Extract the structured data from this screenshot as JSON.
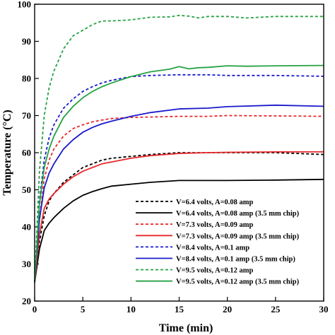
{
  "chart_data": {
    "type": "line",
    "xlabel": "Time (min)",
    "ylabel": "Temperature (°C)",
    "xlim": [
      0,
      30
    ],
    "ylim": [
      20,
      100
    ],
    "xticks": [
      0,
      5,
      10,
      15,
      20,
      25,
      30
    ],
    "yticks": [
      20,
      30,
      40,
      50,
      60,
      70,
      80,
      90,
      100
    ],
    "grid": false,
    "legend_position": "bottom-right",
    "series": [
      {
        "name": "V=6.4 volts, A=0.08 amp",
        "color": "#000000",
        "dash": "dashed",
        "x": [
          0,
          0.5,
          1,
          1.5,
          2,
          3,
          4,
          5,
          6,
          7,
          8,
          10,
          12,
          15,
          18,
          20,
          25,
          30
        ],
        "y": [
          25,
          36,
          43,
          47,
          49,
          52,
          54,
          56,
          57,
          58,
          58.5,
          59,
          59.5,
          60,
          60,
          60,
          60,
          59.5
        ]
      },
      {
        "name": "V=6.4 volts, A=0.08 amp (3.5 mm chip)",
        "color": "#000000",
        "dash": "solid",
        "x": [
          0,
          0.5,
          1,
          1.5,
          2,
          3,
          4,
          5,
          6,
          7,
          8,
          10,
          12,
          15,
          18,
          20,
          25,
          30
        ],
        "y": [
          25,
          34,
          39,
          41,
          42.5,
          45,
          47,
          48.5,
          49.5,
          50.3,
          51,
          51.5,
          52,
          52.5,
          52.5,
          52.5,
          52.6,
          52.8
        ]
      },
      {
        "name": "V=7.3 volts, A=0.09 amp",
        "color": "#e8282b",
        "dash": "dashed",
        "x": [
          0,
          0.5,
          1,
          1.5,
          2,
          3,
          4,
          5,
          6,
          7,
          8,
          10,
          12,
          15,
          18,
          20,
          25,
          30
        ],
        "y": [
          25,
          42,
          53,
          58,
          61,
          64.5,
          66.5,
          67.5,
          68.3,
          68.8,
          69.2,
          69.5,
          69.6,
          69.8,
          69.8,
          70,
          69.9,
          69.8
        ]
      },
      {
        "name": "V=7.3 volts, A=0.09 amp (3.5 mm chip)",
        "color": "#e8282b",
        "dash": "solid",
        "x": [
          0,
          0.5,
          1,
          1.5,
          2,
          3,
          4,
          5,
          6,
          7,
          8,
          10,
          12,
          15,
          18,
          20,
          25,
          30
        ],
        "y": [
          25,
          38,
          45,
          47.5,
          49,
          51.5,
          53.5,
          55,
          56,
          57,
          57.5,
          58.5,
          59.2,
          59.8,
          60,
          60.1,
          60.2,
          60.2
        ]
      },
      {
        "name": "V=8.4 volts, A=0.1 amp",
        "color": "#1a1acc",
        "dash": "dashed",
        "x": [
          0,
          0.5,
          1,
          1.5,
          2,
          3,
          4,
          5,
          6,
          7,
          8,
          10,
          12,
          15,
          18,
          20,
          25,
          30
        ],
        "y": [
          25,
          47,
          58,
          64,
          67.5,
          72,
          74.5,
          76.5,
          77.8,
          78.8,
          79.5,
          80.5,
          80.8,
          81,
          81,
          80.8,
          80.8,
          80.6
        ]
      },
      {
        "name": "V=8.4 volts, A=0.1 amp (3.5 mm chip)",
        "color": "#1a1acc",
        "dash": "solid",
        "x": [
          0,
          0.5,
          1,
          1.5,
          2,
          3,
          4,
          5,
          6,
          7,
          8,
          10,
          12,
          15,
          18,
          20,
          25,
          30
        ],
        "y": [
          25,
          42,
          50.5,
          54.5,
          57,
          61,
          63.5,
          65.5,
          66.8,
          67.8,
          68.5,
          69.8,
          70.8,
          71.8,
          72,
          72.4,
          72.8,
          72.5
        ]
      },
      {
        "name": "V=9.5 volts, A=0.12 amp",
        "color": "#26a244",
        "dash": "dashed",
        "x": [
          0,
          0.5,
          1,
          1.5,
          2,
          3,
          4,
          5,
          6,
          7,
          8,
          10,
          12,
          14,
          15,
          16,
          17,
          18,
          20,
          22,
          25,
          30
        ],
        "y": [
          25,
          55,
          70,
          77.5,
          82,
          88,
          91.5,
          93,
          94.5,
          95.5,
          95.5,
          95.8,
          96.5,
          96.6,
          97,
          96.8,
          96.3,
          96.7,
          96.7,
          96.3,
          96.7,
          96.7
        ]
      },
      {
        "name": "V=9.5 volts, A=0.12 amp (3.5 mm chip)",
        "color": "#26a244",
        "dash": "solid",
        "x": [
          0,
          0.5,
          1,
          1.5,
          2,
          3,
          4,
          5,
          6,
          7,
          8,
          10,
          12,
          14,
          15,
          16,
          17,
          18,
          20,
          22,
          25,
          30
        ],
        "y": [
          25,
          46,
          56,
          61,
          64.5,
          69.5,
          72.5,
          74.8,
          76.5,
          77.8,
          78.8,
          80.5,
          81.8,
          82.5,
          83.2,
          82.6,
          82.9,
          83,
          83.4,
          83.3,
          83.4,
          83.5
        ]
      }
    ]
  }
}
